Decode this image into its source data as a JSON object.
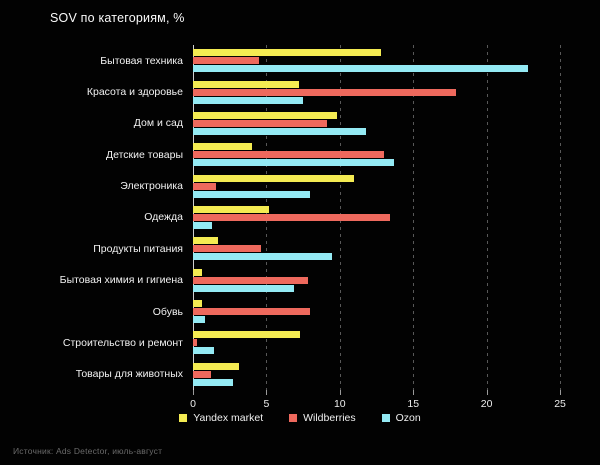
{
  "title": "SOV по категориям, %",
  "source": "Источник: Ads Detector, июль-август",
  "colors": {
    "background": "#020202",
    "text": "#f2f2f2",
    "muted_text": "#6a6a6a",
    "axis": "#cfcfcf",
    "grid": "#585858",
    "yandex": "#f4eb52",
    "wildberries": "#ee695d",
    "ozon": "#94eaf4"
  },
  "chart_data": {
    "type": "bar",
    "orientation": "horizontal",
    "title": "SOV по категориям, %",
    "xlabel": "",
    "ylabel": "",
    "grid": "dashed-vertical",
    "legend_position": "bottom",
    "x_ticks": [
      0,
      5,
      10,
      15,
      20,
      25
    ],
    "xlim": [
      0,
      26.7
    ],
    "categories": [
      "Бытовая техника",
      "Красота и здоровье",
      "Дом и сад",
      "Детские товары",
      "Электроника",
      "Одежда",
      "Продукты питания",
      "Бытовая химия и гигиена",
      "Обувь",
      "Строительство и ремонт",
      "Товары для животных"
    ],
    "series": [
      {
        "name": "Yandex market",
        "color": "#f4eb52",
        "values": [
          12.8,
          7.2,
          9.8,
          4.0,
          11.0,
          5.2,
          1.7,
          0.6,
          0.6,
          7.3,
          3.1
        ]
      },
      {
        "name": "Wildberries",
        "color": "#ee695d",
        "values": [
          4.5,
          17.9,
          9.1,
          13.0,
          1.6,
          13.4,
          4.6,
          7.8,
          8.0,
          0.3,
          1.2
        ]
      },
      {
        "name": "Ozon",
        "color": "#94eaf4",
        "values": [
          22.8,
          7.5,
          11.8,
          13.7,
          8.0,
          1.3,
          9.5,
          6.9,
          0.8,
          1.4,
          2.7
        ]
      }
    ]
  }
}
